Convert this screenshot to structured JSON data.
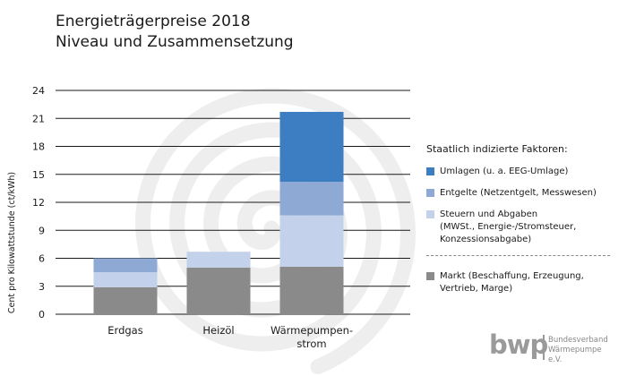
{
  "title": {
    "line1": "Energieträgerpreise 2018",
    "line2": "Niveau und Zusammensetzung"
  },
  "chart_data": {
    "type": "bar",
    "stacked": true,
    "categories": [
      "Erdgas",
      "Heizöl",
      "Wärmepumpen-\nstrom"
    ],
    "ylabel": "Cent pro Kilowattstunde (ct/kWh)",
    "ylim": [
      0,
      24
    ],
    "yticks": [
      0,
      3,
      6,
      9,
      12,
      15,
      18,
      21,
      24
    ],
    "grid": true,
    "series": [
      {
        "name": "Markt (Beschaffung, Erzeugung, Vertrieb, Marge)",
        "color": "#8a8a8a",
        "values": [
          2.9,
          5.0,
          5.1
        ]
      },
      {
        "name": "Steuern und Abgaben (MWSt., Energie-/Stromsteuer, Konzessionsabgabe)",
        "color": "#c3d2ea",
        "values": [
          1.6,
          1.7,
          5.5
        ]
      },
      {
        "name": "Entgelte (Netzentgelt, Messwesen)",
        "color": "#8eaad4",
        "values": [
          1.5,
          0,
          3.6
        ]
      },
      {
        "name": "Umlagen (u. a. EEG-Umlage)",
        "color": "#3d7ec2",
        "values": [
          0,
          0,
          7.5
        ]
      }
    ]
  },
  "legend": {
    "heading": "Staatlich indizierte Faktoren:",
    "items": [
      {
        "label": "Umlagen (u. a. EEG-Umlage)",
        "color": "#3d7ec2"
      },
      {
        "label": "Entgelte (Netzentgelt, Messwesen)",
        "color": "#8eaad4"
      },
      {
        "label": "Steuern und Abgaben\n(MWSt., Energie-/Stromsteuer,\nKonzessionsabgabe)",
        "color": "#c3d2ea"
      }
    ],
    "market": {
      "label": "Markt (Beschaffung, Erzeugung,\nVertrieb, Marge)",
      "color": "#8a8a8a"
    }
  },
  "logo": {
    "mark": "bwp",
    "text": "Bundesverband\nWärmepumpe e.V."
  }
}
